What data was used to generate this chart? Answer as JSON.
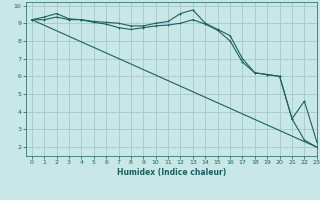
{
  "title": "",
  "xlabel": "Humidex (Indice chaleur)",
  "ylabel": "",
  "background_color": "#c8e8e8",
  "grid_color": "#a8c8c8",
  "line_color": "#1a6060",
  "xlim": [
    -0.5,
    23
  ],
  "ylim": [
    1.5,
    10.2
  ],
  "yticks": [
    2,
    3,
    4,
    5,
    6,
    7,
    8,
    9,
    10
  ],
  "xticks": [
    0,
    1,
    2,
    3,
    4,
    5,
    6,
    7,
    8,
    9,
    10,
    11,
    12,
    13,
    14,
    15,
    16,
    17,
    18,
    19,
    20,
    21,
    22,
    23
  ],
  "line1_x": [
    0,
    1,
    2,
    3,
    4,
    5,
    6,
    7,
    8,
    9,
    10,
    11,
    12,
    13,
    14,
    15,
    16,
    17,
    18,
    19,
    20,
    21,
    22,
    23
  ],
  "line1_y": [
    9.2,
    9.35,
    9.55,
    9.25,
    9.2,
    9.1,
    9.05,
    9.0,
    8.85,
    8.85,
    9.0,
    9.1,
    9.55,
    9.75,
    9.0,
    8.65,
    8.3,
    7.0,
    6.2,
    6.1,
    6.0,
    3.6,
    4.6,
    2.3
  ],
  "line2_x": [
    0,
    1,
    2,
    3,
    4,
    5,
    6,
    7,
    8,
    9,
    10,
    11,
    12,
    13,
    14,
    15,
    16,
    17,
    18,
    19,
    20,
    21,
    22,
    23
  ],
  "line2_y": [
    9.2,
    9.2,
    9.35,
    9.2,
    9.2,
    9.05,
    8.95,
    8.75,
    8.65,
    8.75,
    8.85,
    8.9,
    9.0,
    9.2,
    8.95,
    8.6,
    8.0,
    6.8,
    6.2,
    6.1,
    6.0,
    3.6,
    2.4,
    2.0
  ],
  "line3_x": [
    0,
    23
  ],
  "line3_y": [
    9.2,
    2.0
  ]
}
